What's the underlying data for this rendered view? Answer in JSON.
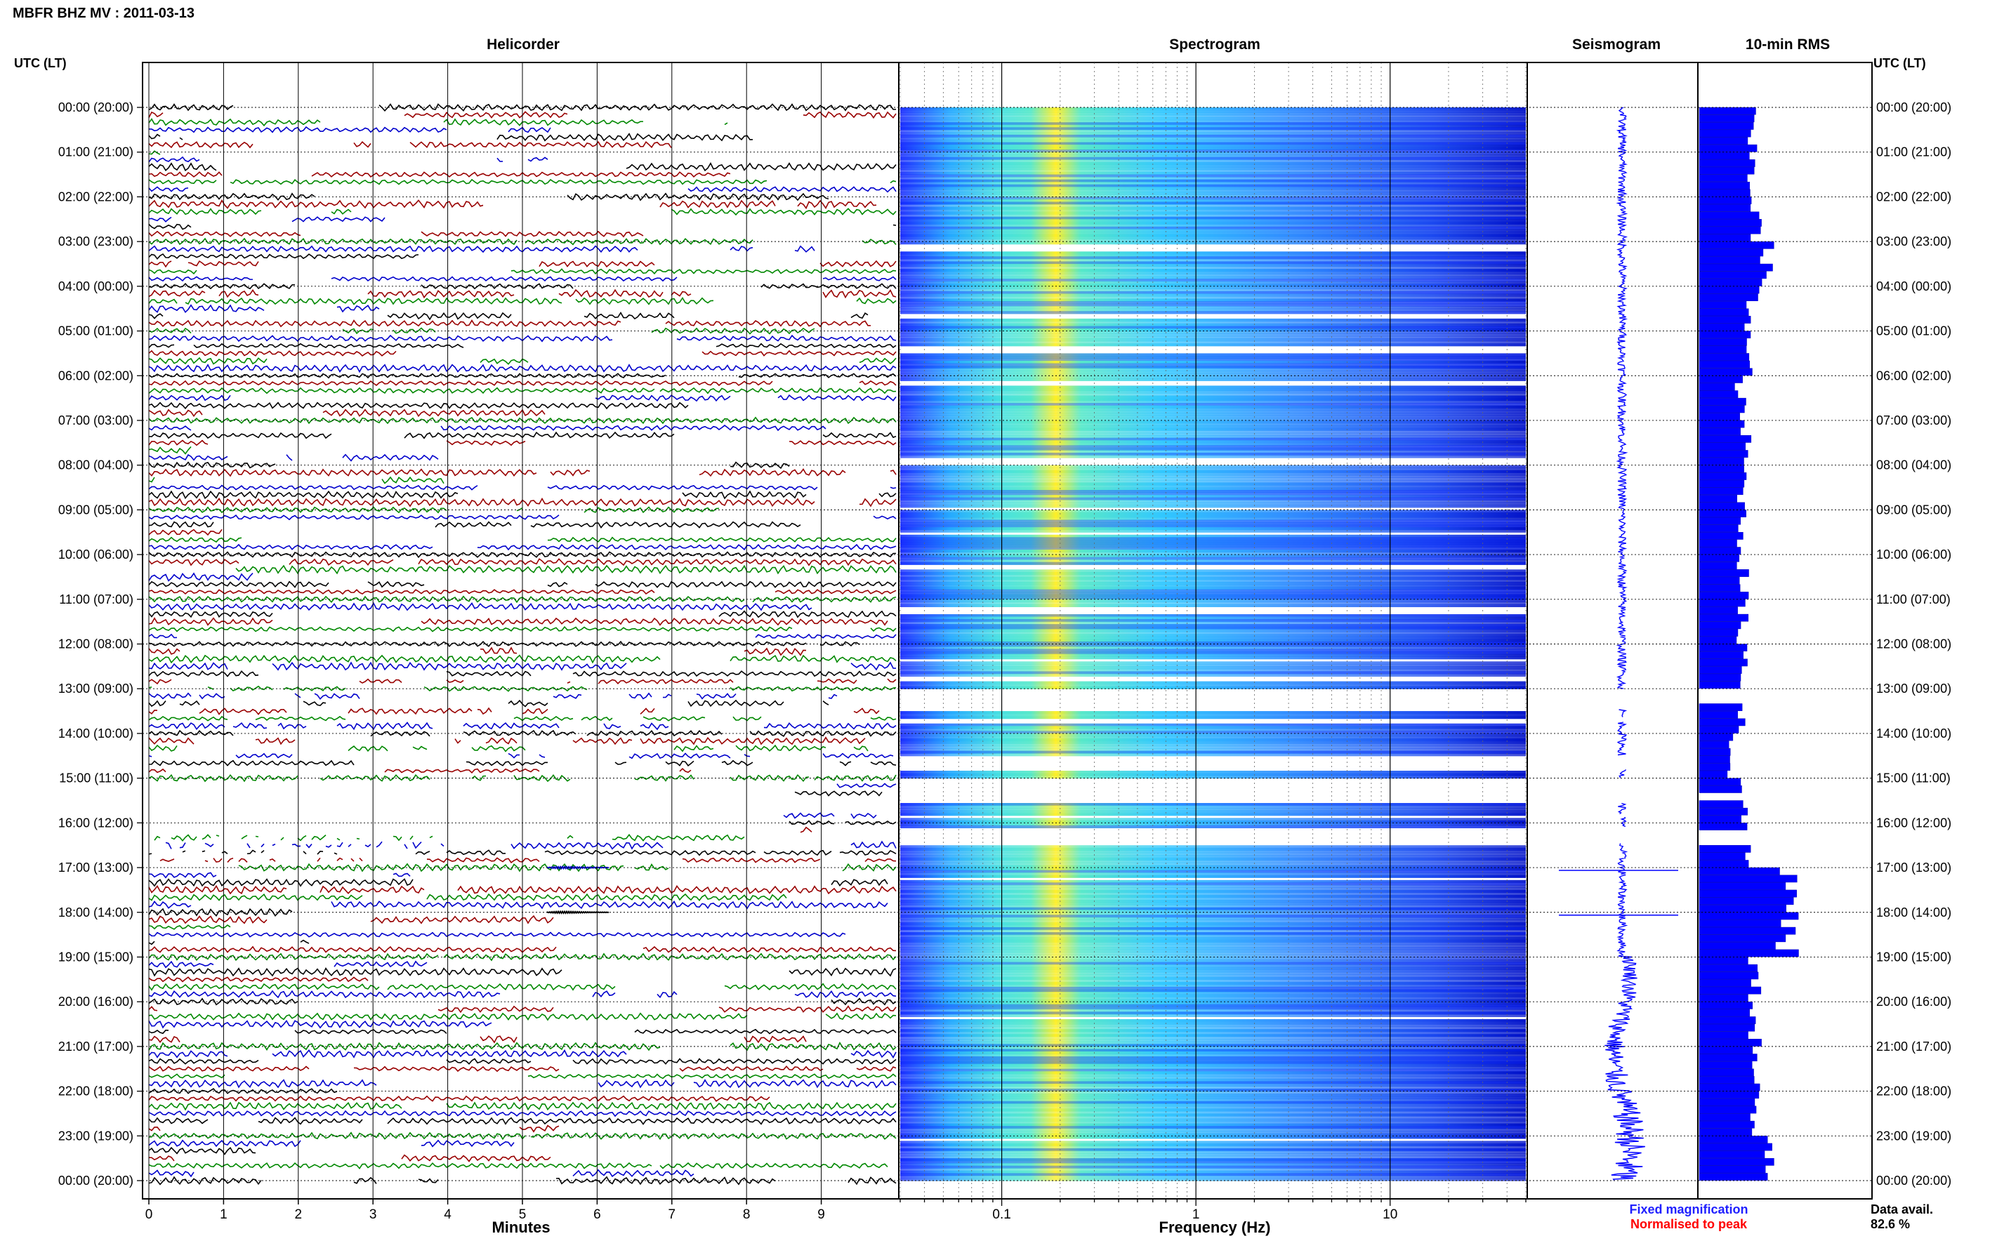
{
  "title": "MBFR BHZ MV : 2011-03-13",
  "panels": {
    "helicorder": "Helicorder",
    "spectrogram": "Spectrogram",
    "seismogram": "Seismogram",
    "rms": "10-min RMS"
  },
  "axis_left_header": "UTC (LT)",
  "axis_right_header": "UTC (LT)",
  "helicorder_xlabel": "Minutes",
  "spectrogram_xlabel": "Frequency (Hz)",
  "legend": {
    "fixed": "Fixed magnification",
    "normalised": "Normalised to peak",
    "fixed_color": "#1f1fff",
    "normalised_color": "#ff0000"
  },
  "data_avail_label": "Data avail.",
  "data_avail_value": "82.6 %",
  "colors": {
    "trace_cycle": [
      "#000000",
      "#990000",
      "#008800",
      "#0000cc"
    ],
    "rms_bar": "#0000ff",
    "spectro_low": "#1a2cff",
    "spectro_high": "#ffee22"
  },
  "chart_data": [
    {
      "type": "line",
      "name": "Helicorder",
      "xlabel": "Minutes",
      "x_ticks": [
        0,
        1,
        2,
        3,
        4,
        5,
        6,
        7,
        8,
        9
      ],
      "xlim": [
        0,
        10
      ],
      "y_ticks": [
        "00:00 (20:00)",
        "01:00 (21:00)",
        "02:00 (22:00)",
        "03:00 (23:00)",
        "04:00 (00:00)",
        "05:00 (01:00)",
        "06:00 (02:00)",
        "07:00 (03:00)",
        "08:00 (04:00)",
        "09:00 (05:00)",
        "10:00 (06:00)",
        "11:00 (07:00)",
        "12:00 (08:00)",
        "13:00 (09:00)",
        "14:00 (10:00)",
        "15:00 (11:00)",
        "16:00 (12:00)",
        "17:00 (13:00)",
        "18:00 (14:00)",
        "19:00 (15:00)",
        "20:00 (16:00)",
        "21:00 (17:00)",
        "22:00 (18:00)",
        "23:00 (19:00)",
        "00:00 (20:00)"
      ],
      "lines_per_hour": 6,
      "events": [
        {
          "hour": 17.0,
          "minute": 5.4
        },
        {
          "hour": 18.0,
          "minute": 5.4
        }
      ]
    },
    {
      "type": "heatmap",
      "name": "Spectrogram",
      "xlabel": "Frequency (Hz)",
      "x_scale": "log",
      "x_ticks": [
        "0.1",
        "1",
        "10"
      ],
      "xlim": [
        0.03,
        50
      ],
      "peak_band_hz": 0.19
    },
    {
      "type": "line",
      "name": "Seismogram",
      "spikes": [
        {
          "hour": 17.0
        },
        {
          "hour": 18.0
        }
      ]
    },
    {
      "type": "bar",
      "name": "10-min RMS",
      "orientation": "horizontal",
      "hour_values": [
        0.55,
        0.58,
        0.62,
        0.72,
        0.58,
        0.52,
        0.45,
        0.5,
        0.48,
        0.47,
        0.48,
        0.47,
        0.5,
        0.47,
        0.35,
        0.48,
        0.53,
        1.0,
        0.95,
        0.6,
        0.62,
        0.6,
        0.58,
        0.8
      ],
      "gaps_hours": [
        [
          13.0,
          13.25
        ],
        [
          15.25,
          15.45
        ],
        [
          16.1,
          16.35
        ]
      ]
    }
  ]
}
